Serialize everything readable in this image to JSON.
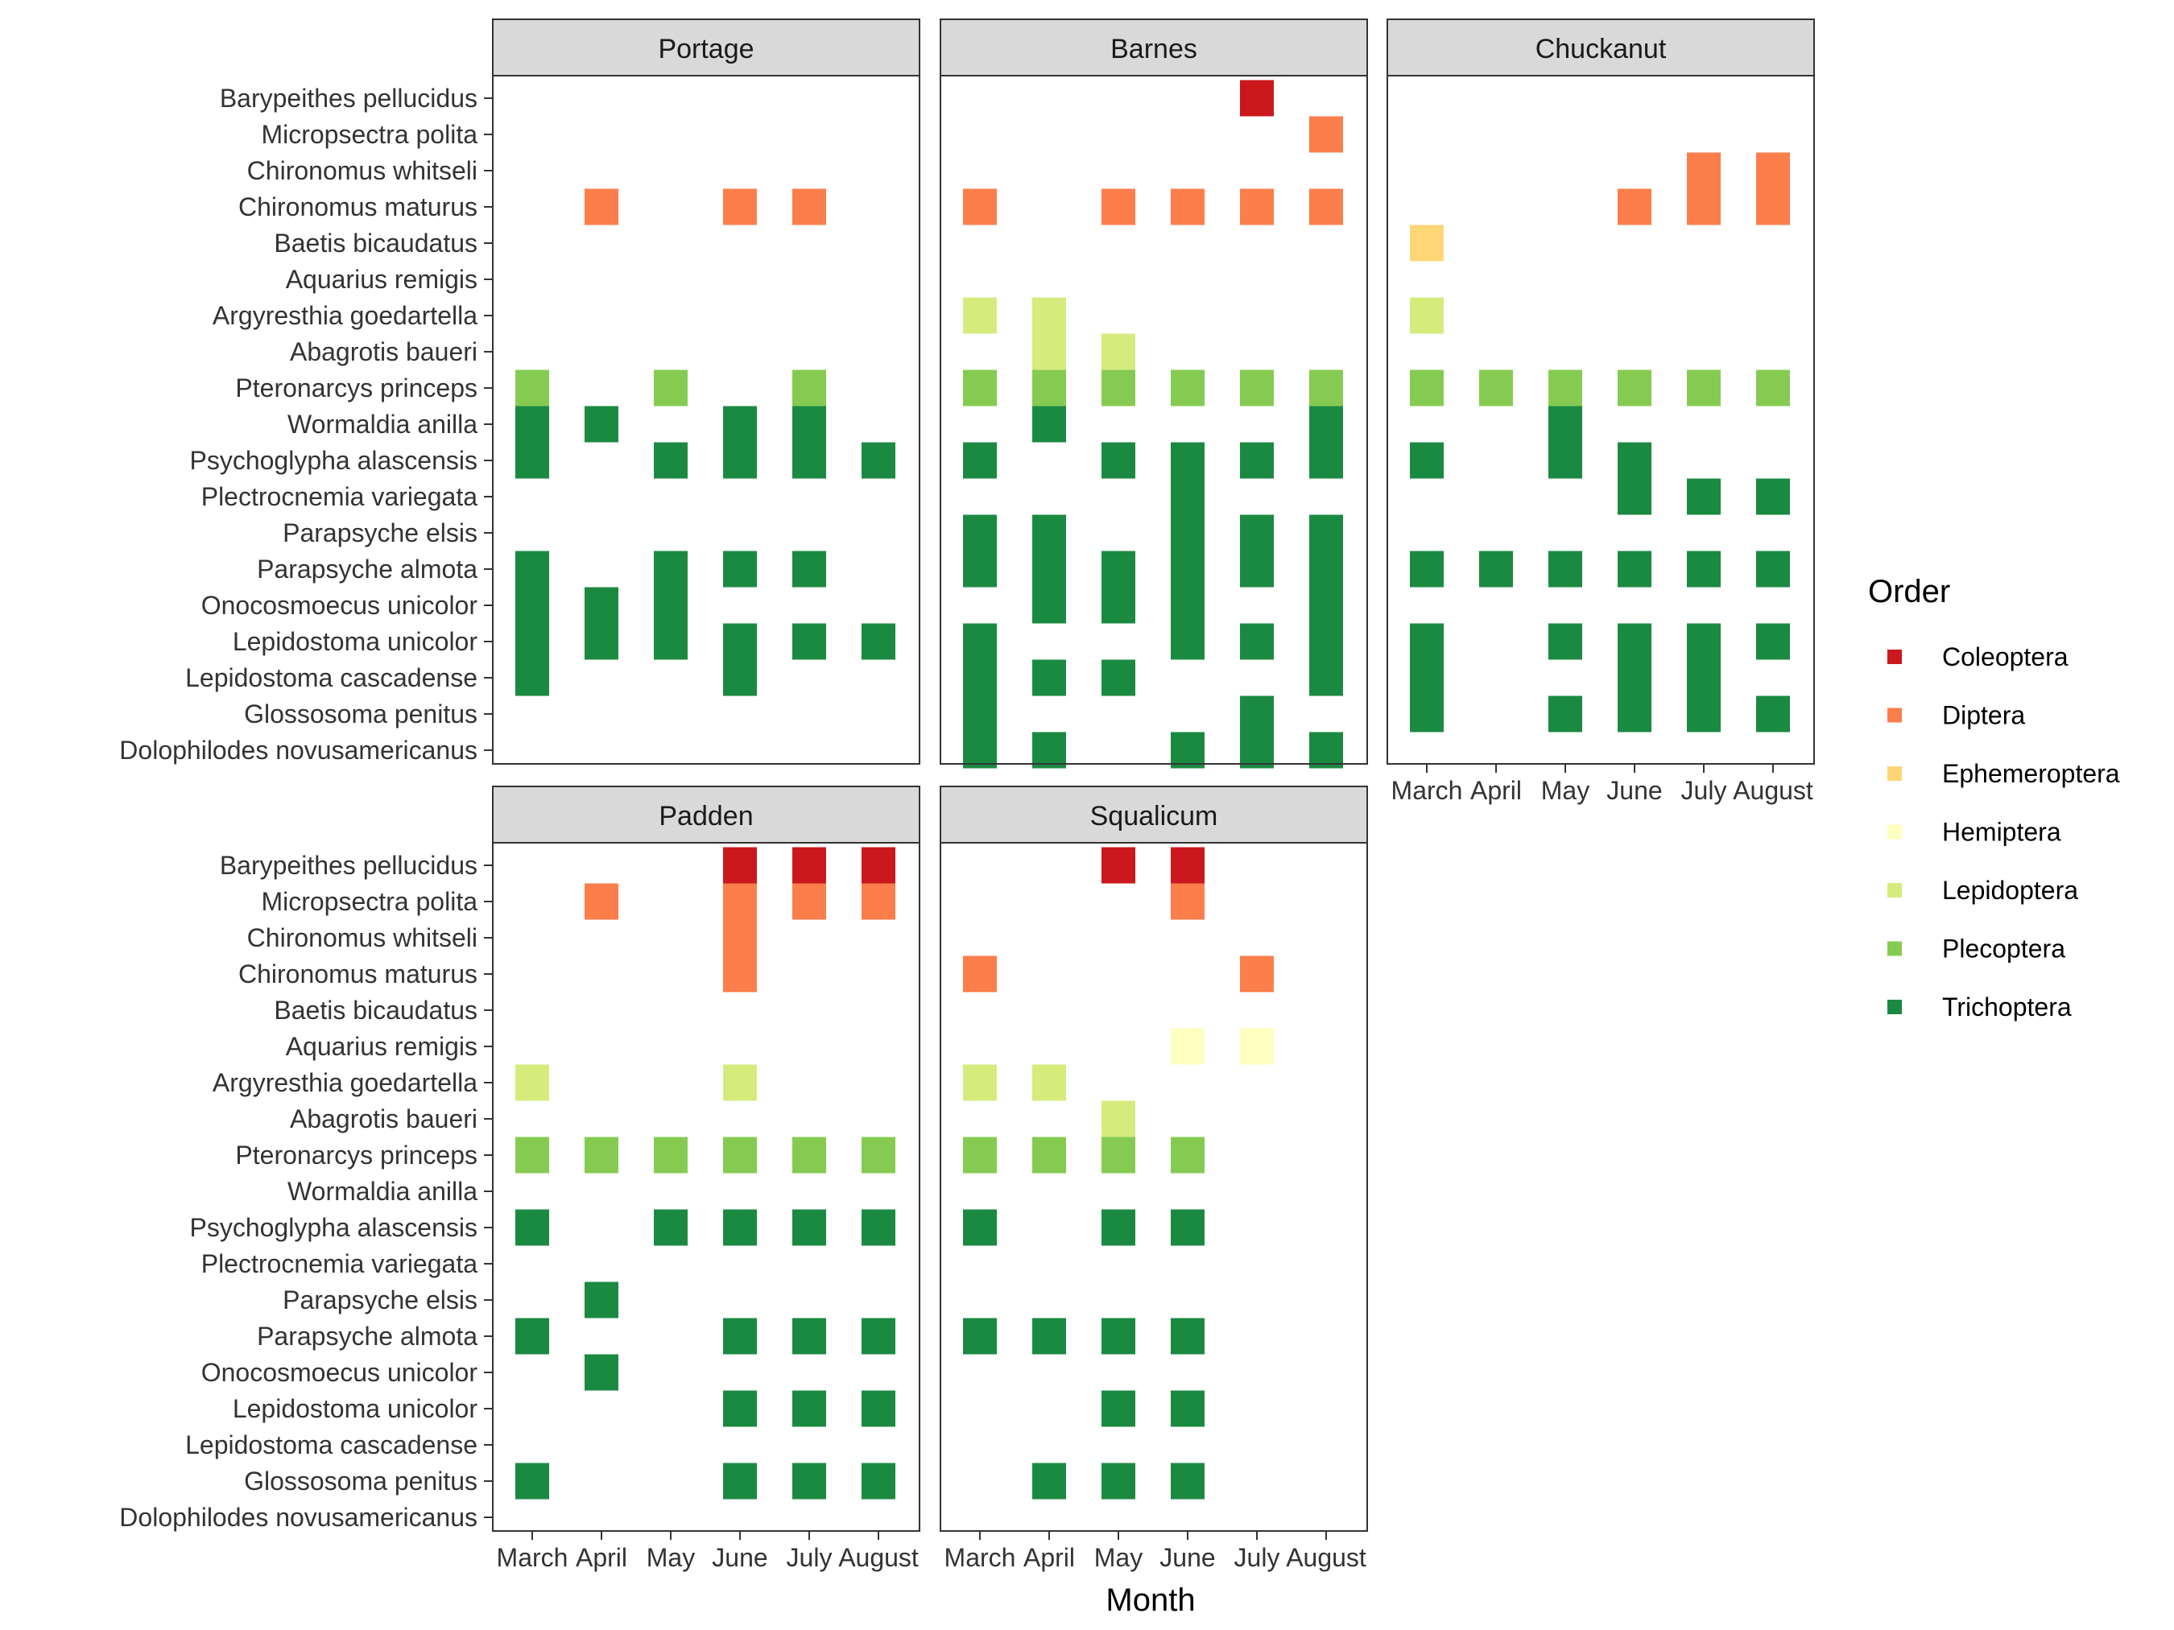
{
  "chart_data": {
    "type": "heatmap",
    "xlabel": "Month",
    "ylabel": "",
    "legend": {
      "title": "Order",
      "position": "right"
    },
    "x": [
      "March",
      "April",
      "May",
      "June",
      "July",
      "August"
    ],
    "y": [
      "Barypeithes pellucidus",
      "Micropsectra polita",
      "Chironomus whitseli",
      "Chironomus maturus",
      "Baetis bicaudatus",
      "Aquarius remigis",
      "Argyresthia goedartella",
      "Abagrotis baueri",
      "Pteronarcys princeps",
      "Wormaldia anilla",
      "Psychoglypha alascensis",
      "Plectrocnemia variegata",
      "Parapsyche elsis",
      "Parapsyche almota",
      "Onocosmoecus unicolor",
      "Lepidostoma unicolor",
      "Lepidostoma cascadense",
      "Glossosoma penitus",
      "Dolophilodes novusamericanus"
    ],
    "orders": [
      {
        "name": "Coleoptera",
        "color": "#cb181d"
      },
      {
        "name": "Diptera",
        "color": "#fc7e4b"
      },
      {
        "name": "Ephemeroptera",
        "color": "#fed676"
      },
      {
        "name": "Hemiptera",
        "color": "#ffffbf"
      },
      {
        "name": "Lepidoptera",
        "color": "#d5ec7d"
      },
      {
        "name": "Plecoptera",
        "color": "#86cb51"
      },
      {
        "name": "Trichoptera",
        "color": "#1b8a41"
      }
    ],
    "species_order": {
      "Barypeithes pellucidus": "Coleoptera",
      "Micropsectra polita": "Diptera",
      "Chironomus whitseli": "Diptera",
      "Chironomus maturus": "Diptera",
      "Baetis bicaudatus": "Ephemeroptera",
      "Aquarius remigis": "Hemiptera",
      "Argyresthia goedartella": "Lepidoptera",
      "Abagrotis baueri": "Lepidoptera",
      "Pteronarcys princeps": "Plecoptera",
      "Wormaldia anilla": "Trichoptera",
      "Psychoglypha alascensis": "Trichoptera",
      "Plectrocnemia variegata": "Trichoptera",
      "Parapsyche elsis": "Trichoptera",
      "Parapsyche almota": "Trichoptera",
      "Onocosmoecus unicolor": "Trichoptera",
      "Lepidostoma unicolor": "Trichoptera",
      "Lepidostoma cascadense": "Trichoptera",
      "Glossosoma penitus": "Trichoptera",
      "Dolophilodes novusamericanus": "Trichoptera"
    },
    "facets": [
      {
        "name": "Portage",
        "present": {
          "Chironomus maturus": [
            "April",
            "June",
            "July"
          ],
          "Pteronarcys princeps": [
            "March",
            "May",
            "July"
          ],
          "Wormaldia anilla": [
            "March",
            "April",
            "June",
            "July"
          ],
          "Psychoglypha alascensis": [
            "March",
            "May",
            "June",
            "July",
            "August"
          ],
          "Parapsyche almota": [
            "March",
            "May",
            "June",
            "July"
          ],
          "Onocosmoecus unicolor": [
            "March",
            "April",
            "May"
          ],
          "Lepidostoma unicolor": [
            "March",
            "April",
            "May",
            "June",
            "July",
            "August"
          ],
          "Lepidostoma cascadense": [
            "March",
            "June"
          ]
        }
      },
      {
        "name": "Barnes",
        "present": {
          "Barypeithes pellucidus": [
            "July"
          ],
          "Micropsectra polita": [
            "August"
          ],
          "Chironomus maturus": [
            "March",
            "May",
            "June",
            "July",
            "August"
          ],
          "Argyresthia goedartella": [
            "March",
            "April"
          ],
          "Abagrotis baueri": [
            "April",
            "May"
          ],
          "Pteronarcys princeps": [
            "March",
            "April",
            "May",
            "June",
            "July",
            "August"
          ],
          "Wormaldia anilla": [
            "April",
            "August"
          ],
          "Psychoglypha alascensis": [
            "March",
            "May",
            "June",
            "July",
            "August"
          ],
          "Plectrocnemia variegata": [
            "June"
          ],
          "Parapsyche elsis": [
            "March",
            "April",
            "June",
            "July",
            "August"
          ],
          "Parapsyche almota": [
            "March",
            "April",
            "May",
            "June",
            "July",
            "August"
          ],
          "Onocosmoecus unicolor": [
            "April",
            "May",
            "June",
            "August"
          ],
          "Lepidostoma unicolor": [
            "March",
            "June",
            "July",
            "August"
          ],
          "Lepidostoma cascadense": [
            "March",
            "April",
            "May",
            "August"
          ],
          "Glossosoma penitus": [
            "March",
            "July"
          ],
          "Dolophilodes novusamericanus": [
            "March",
            "April",
            "June",
            "July",
            "August"
          ]
        }
      },
      {
        "name": "Chuckanut",
        "present": {
          "Chironomus whitseli": [
            "July",
            "August"
          ],
          "Chironomus maturus": [
            "June",
            "July",
            "August"
          ],
          "Baetis bicaudatus": [
            "March"
          ],
          "Argyresthia goedartella": [
            "March"
          ],
          "Pteronarcys princeps": [
            "March",
            "April",
            "May",
            "June",
            "July",
            "August"
          ],
          "Wormaldia anilla": [
            "May"
          ],
          "Psychoglypha alascensis": [
            "March",
            "May",
            "June"
          ],
          "Plectrocnemia variegata": [
            "June",
            "July",
            "August"
          ],
          "Parapsyche almota": [
            "March",
            "April",
            "May",
            "June",
            "July",
            "August"
          ],
          "Lepidostoma unicolor": [
            "March",
            "May",
            "June",
            "July",
            "August"
          ],
          "Lepidostoma cascadense": [
            "March",
            "June",
            "July"
          ],
          "Glossosoma penitus": [
            "March",
            "May",
            "June",
            "July",
            "August"
          ]
        }
      },
      {
        "name": "Padden",
        "present": {
          "Barypeithes pellucidus": [
            "June",
            "July",
            "August"
          ],
          "Micropsectra polita": [
            "April",
            "June",
            "July",
            "August"
          ],
          "Chironomus whitseli": [
            "June"
          ],
          "Chironomus maturus": [
            "June"
          ],
          "Argyresthia goedartella": [
            "March",
            "June"
          ],
          "Pteronarcys princeps": [
            "March",
            "April",
            "May",
            "June",
            "July",
            "August"
          ],
          "Psychoglypha alascensis": [
            "March",
            "May",
            "June",
            "July",
            "August"
          ],
          "Parapsyche elsis": [
            "April"
          ],
          "Parapsyche almota": [
            "March",
            "June",
            "July",
            "August"
          ],
          "Onocosmoecus unicolor": [
            "April"
          ],
          "Lepidostoma unicolor": [
            "June",
            "July",
            "August"
          ],
          "Glossosoma penitus": [
            "March",
            "June",
            "July",
            "August"
          ]
        }
      },
      {
        "name": "Squalicum",
        "present": {
          "Barypeithes pellucidus": [
            "May",
            "June"
          ],
          "Micropsectra polita": [
            "June"
          ],
          "Chironomus maturus": [
            "March",
            "July"
          ],
          "Aquarius remigis": [
            "June",
            "July"
          ],
          "Argyresthia goedartella": [
            "March",
            "April"
          ],
          "Abagrotis baueri": [
            "May"
          ],
          "Pteronarcys princeps": [
            "March",
            "April",
            "May",
            "June"
          ],
          "Psychoglypha alascensis": [
            "March",
            "May",
            "June"
          ],
          "Parapsyche almota": [
            "March",
            "April",
            "May",
            "June"
          ],
          "Lepidostoma unicolor": [
            "May",
            "June"
          ],
          "Glossosoma penitus": [
            "April",
            "May",
            "June"
          ]
        }
      }
    ]
  }
}
